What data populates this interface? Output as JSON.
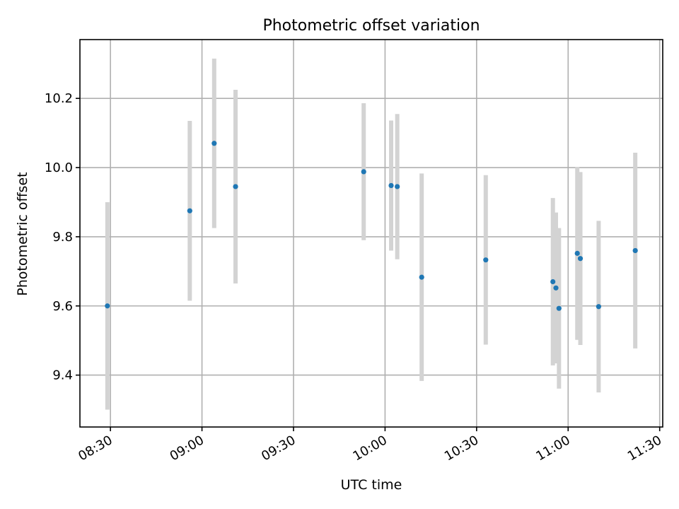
{
  "chart_data": {
    "type": "scatter",
    "title": "Photometric offset variation",
    "xlabel": "UTC time",
    "ylabel": "Photometric offset",
    "x_is_time": true,
    "xlim": [
      "08:20",
      "11:31"
    ],
    "ylim": [
      9.25,
      10.37
    ],
    "x_ticks": [
      "08:30",
      "09:00",
      "09:30",
      "10:00",
      "10:30",
      "11:00",
      "11:30"
    ],
    "y_ticks": [
      9.4,
      9.6,
      9.8,
      10.0,
      10.2
    ],
    "y_tick_labels": [
      "9.4",
      "9.6",
      "9.8",
      "10.0",
      "10.2"
    ],
    "grid": true,
    "point_color": "#1f77b4",
    "errorbar_color": "#d3d3d3",
    "points": [
      {
        "time": "08:29",
        "y": 9.6,
        "err": 0.3
      },
      {
        "time": "08:56",
        "y": 9.875,
        "err": 0.26
      },
      {
        "time": "09:04",
        "y": 10.07,
        "err": 0.245
      },
      {
        "time": "09:11",
        "y": 9.945,
        "err": 0.28
      },
      {
        "time": "09:53",
        "y": 9.988,
        "err": 0.198
      },
      {
        "time": "10:02",
        "y": 9.948,
        "err": 0.188
      },
      {
        "time": "10:04",
        "y": 9.945,
        "err": 0.21
      },
      {
        "time": "10:12",
        "y": 9.683,
        "err": 0.3
      },
      {
        "time": "10:33",
        "y": 9.733,
        "err": 0.245
      },
      {
        "time": "10:55",
        "y": 9.67,
        "err": 0.242
      },
      {
        "time": "10:56",
        "y": 9.652,
        "err": 0.218
      },
      {
        "time": "10:57",
        "y": 9.593,
        "err": 0.232
      },
      {
        "time": "11:03",
        "y": 9.752,
        "err": 0.25
      },
      {
        "time": "11:04",
        "y": 9.737,
        "err": 0.25
      },
      {
        "time": "11:10",
        "y": 9.598,
        "err": 0.248
      },
      {
        "time": "11:22",
        "y": 9.76,
        "err": 0.283
      }
    ]
  }
}
